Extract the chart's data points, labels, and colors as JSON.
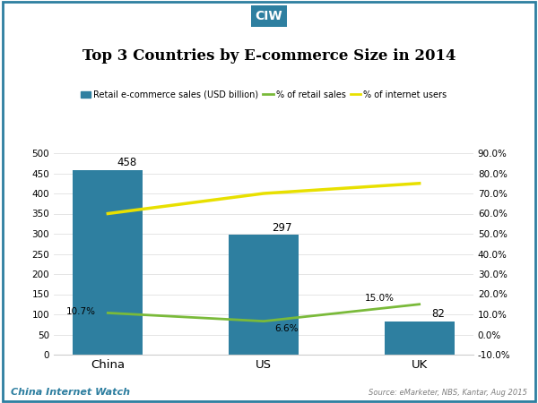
{
  "title": "Top 3 Countries by E-commerce Size in 2014",
  "header_label": "CIW",
  "categories": [
    "China",
    "US",
    "UK"
  ],
  "bar_values": [
    458,
    297,
    82
  ],
  "bar_color": "#2e7fa0",
  "retail_pct": [
    10.7,
    6.6,
    15.0
  ],
  "internet_pct": [
    60.0,
    70.0,
    75.0
  ],
  "left_ylim": [
    0,
    500
  ],
  "left_yticks": [
    0,
    50,
    100,
    150,
    200,
    250,
    300,
    350,
    400,
    450,
    500
  ],
  "right_ylim": [
    -10.0,
    90.0
  ],
  "right_yticks": [
    -10.0,
    0.0,
    10.0,
    20.0,
    30.0,
    40.0,
    50.0,
    60.0,
    70.0,
    80.0,
    90.0
  ],
  "right_yticklabels": [
    "-10.0%",
    "0.0%",
    "10.0%",
    "20.0%",
    "30.0%",
    "40.0%",
    "50.0%",
    "60.0%",
    "70.0%",
    "80.0%",
    "90.0%"
  ],
  "green_line_color": "#7aba3a",
  "yellow_line_color": "#e8e000",
  "legend_labels": [
    "Retail e-commerce sales (USD billion)",
    "% of retail sales",
    "% of internet users"
  ],
  "footer_left": "China Internet Watch",
  "footer_right": "Source: eMarketer, NBS, Kantar, Aug 2015",
  "background_color": "#ffffff",
  "border_color": "#2e7fa0",
  "retail_annotations": [
    "10.7%",
    "6.6%",
    "15.0%"
  ],
  "bar_annotations": [
    "458",
    "297",
    "82"
  ]
}
